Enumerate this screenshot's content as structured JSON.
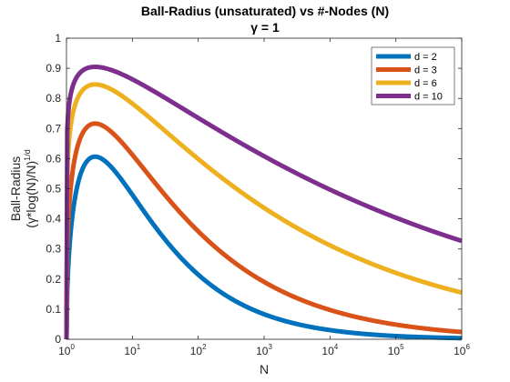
{
  "chart_data": {
    "type": "line",
    "title": "Ball-Radius  (unsaturated)  vs  #-Nodes  (N)",
    "subtitle": "γ  =  1",
    "xlabel": "N",
    "ylabel_line1": "Ball-Radius",
    "ylabel_line2": "(γ*log(N)/N)",
    "ylabel_sup": "1/d",
    "x_scale": "log",
    "xlim": [
      1,
      1000000
    ],
    "ylim": [
      0,
      1
    ],
    "x_ticks": [
      {
        "value": 1,
        "base": "10",
        "exp": "0"
      },
      {
        "value": 10,
        "base": "10",
        "exp": "1"
      },
      {
        "value": 100,
        "base": "10",
        "exp": "2"
      },
      {
        "value": 1000,
        "base": "10",
        "exp": "3"
      },
      {
        "value": 10000,
        "base": "10",
        "exp": "4"
      },
      {
        "value": 100000,
        "base": "10",
        "exp": "5"
      },
      {
        "value": 1000000,
        "base": "10",
        "exp": "6"
      }
    ],
    "y_ticks": [
      {
        "value": 0,
        "label": "0"
      },
      {
        "value": 0.1,
        "label": "0.1"
      },
      {
        "value": 0.2,
        "label": "0.2"
      },
      {
        "value": 0.3,
        "label": "0.3"
      },
      {
        "value": 0.4,
        "label": "0.4"
      },
      {
        "value": 0.5,
        "label": "0.5"
      },
      {
        "value": 0.6,
        "label": "0.6"
      },
      {
        "value": 0.7,
        "label": "0.7"
      },
      {
        "value": 0.8,
        "label": "0.8"
      },
      {
        "value": 0.9,
        "label": "0.9"
      },
      {
        "value": 1,
        "label": "1"
      }
    ],
    "legend_position": "top-right",
    "grid": false,
    "series": [
      {
        "name": "d = 2",
        "d": 2,
        "color": "#0072BD"
      },
      {
        "name": "d = 3",
        "d": 3,
        "color": "#D95319"
      },
      {
        "name": "d = 6",
        "d": 6,
        "color": "#EDB120"
      },
      {
        "name": "d = 10",
        "d": 10,
        "color": "#7E2F8E"
      }
    ]
  }
}
